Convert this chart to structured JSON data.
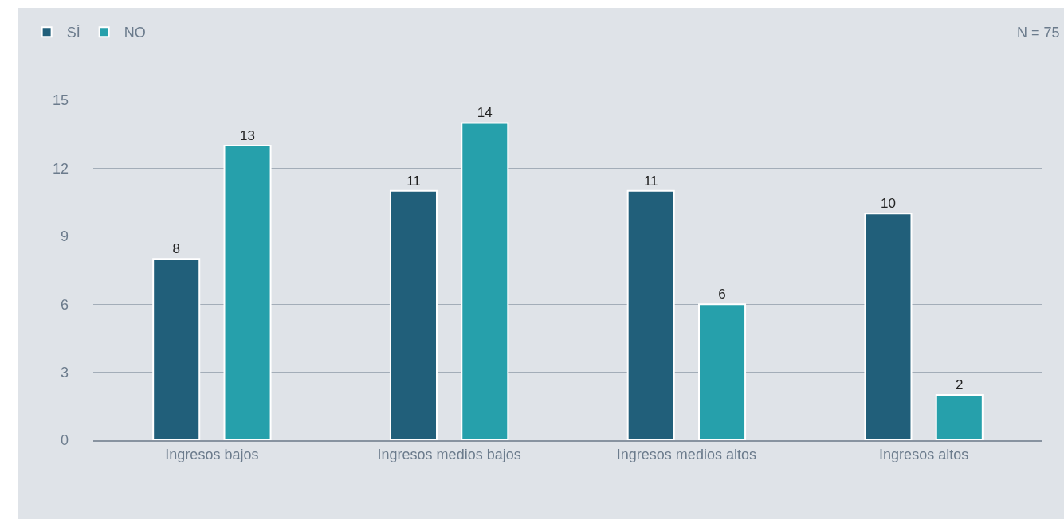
{
  "chart_data": {
    "type": "bar",
    "categories": [
      "Ingresos bajos",
      "Ingresos medios bajos",
      "Ingresos medios altos",
      "Ingresos altos"
    ],
    "series": [
      {
        "name": "SÍ",
        "color": "#215f7a",
        "values": [
          8,
          11,
          11,
          10
        ]
      },
      {
        "name": "NO",
        "color": "#26a0ab",
        "values": [
          13,
          14,
          6,
          2
        ]
      }
    ],
    "ylim": [
      0,
      15
    ],
    "yticks": [
      0,
      3,
      6,
      9,
      12,
      15
    ],
    "grid": "y",
    "legend": "top left",
    "data_labels": true,
    "annotations": [
      "N = 75"
    ]
  }
}
